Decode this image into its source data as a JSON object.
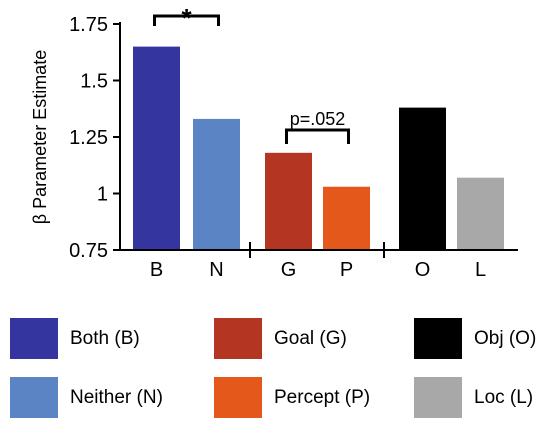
{
  "chart_data": {
    "type": "bar",
    "ylabel": "β Parameter Estimate",
    "ylim": [
      0.75,
      1.75
    ],
    "yticks": [
      "0.75",
      "1",
      "1.25",
      "1.5",
      "1.75"
    ],
    "categories": [
      "B",
      "N",
      "G",
      "P",
      "O",
      "L"
    ],
    "values": [
      1.65,
      1.33,
      1.18,
      1.03,
      1.38,
      1.07
    ],
    "colors": [
      "#35359f",
      "#5b84c4",
      "#b53523",
      "#e5581b",
      "#000000",
      "#a8a8a8"
    ],
    "groups": [
      [
        "B",
        "N"
      ],
      [
        "G",
        "P"
      ],
      [
        "O",
        "L"
      ]
    ],
    "annotations": [
      {
        "text": "*",
        "between": [
          "B",
          "N"
        ]
      },
      {
        "text": "p=.052",
        "between": [
          "G",
          "P"
        ]
      }
    ],
    "grid": false
  },
  "legend": [
    {
      "label": "Both (B)",
      "color": "#35359f",
      "icon": "both-swatch"
    },
    {
      "label": "Neither (N)",
      "color": "#5b84c4",
      "icon": "neither-swatch"
    },
    {
      "label": "Goal (G)",
      "color": "#b53523",
      "icon": "goal-swatch"
    },
    {
      "label": "Percept (P)",
      "color": "#e5581b",
      "icon": "percept-swatch"
    },
    {
      "label": "Obj (O)",
      "color": "#000000",
      "icon": "obj-swatch"
    },
    {
      "label": "Loc (L)",
      "color": "#a8a8a8",
      "icon": "loc-swatch"
    }
  ]
}
